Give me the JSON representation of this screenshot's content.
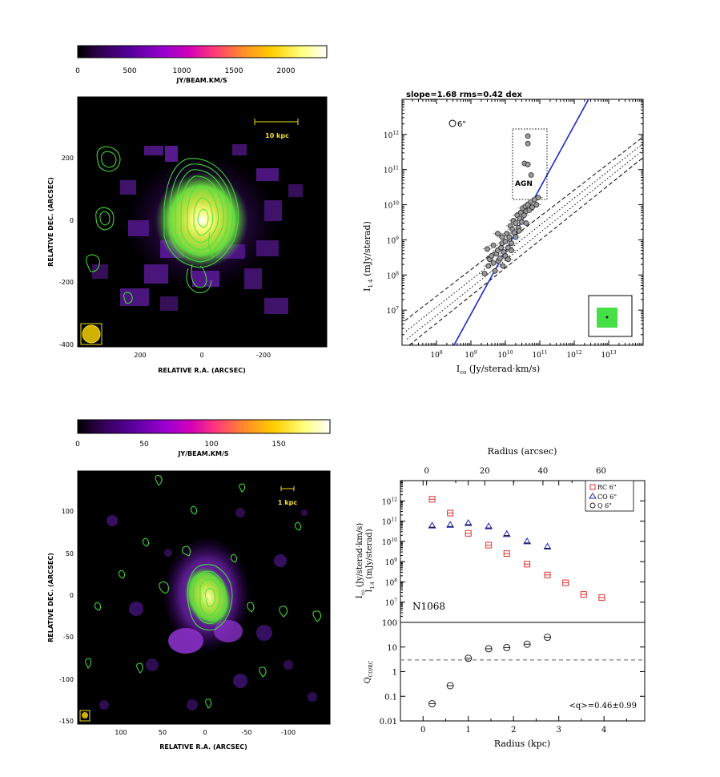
{
  "colors": {
    "colorbar_stops": [
      "#000000",
      "#2b0048",
      "#5a00a0",
      "#9a00d0",
      "#d500b8",
      "#ff3a7a",
      "#ff8a2a",
      "#ffd000",
      "#ffff80",
      "#ffffff"
    ],
    "contour": "#45e43a",
    "map_background": "#000000",
    "scale_bar": "#f0e020",
    "fit_line": "#1a28c8",
    "rc_marker": "#e03030",
    "co_marker": "#2020d0",
    "q_marker": "#222222"
  },
  "panel_tl": {
    "colorbar_ticks": [
      "0",
      "500",
      "1000",
      "1500",
      "2000"
    ],
    "colorbar_unit": "JY/BEAM.KM/S",
    "scale_label": "10 kpc",
    "y_ticks": [
      "200",
      "0",
      "-200",
      "-400"
    ],
    "x_ticks": [
      "200",
      "0",
      "-200"
    ],
    "ylabel": "RELATIVE DEC. (ARCSEC)",
    "xlabel": "RELATIVE R.A. (ARCSEC)"
  },
  "panel_bl": {
    "colorbar_ticks": [
      "0",
      "50",
      "100",
      "150"
    ],
    "colorbar_unit": "JY/BEAM.KM/S",
    "scale_label": "1 kpc",
    "y_ticks": [
      "100",
      "50",
      "0",
      "-50",
      "-100",
      "-150"
    ],
    "x_ticks": [
      "100",
      "50",
      "0",
      "-50",
      "-100"
    ],
    "ylabel": "RELATIVE DEC. (ARCSEC)",
    "xlabel": "RELATIVE R.A. (ARCSEC)"
  },
  "chart_data": [
    {
      "type": "scatter",
      "title": "slope=1.68 rms=0.42 dex",
      "xlabel_main": "I",
      "xlabel_sub": "co",
      "xlabel_rest": "(Jy/sterad·km/s)",
      "ylabel_main": "I",
      "ylabel_sub": "1.4",
      "ylabel_rest": "(mJy/sterad)",
      "x_scale": "log",
      "y_scale": "log",
      "xlim": [
        10000000.0,
        100000000000000.0
      ],
      "ylim": [
        1000000.0,
        10000000000000.0
      ],
      "x_tick_exponents": [
        8,
        9,
        10,
        11,
        12,
        13
      ],
      "y_tick_exponents": [
        7,
        8,
        9,
        10,
        11,
        12
      ],
      "beam_label": "6\"",
      "annotation": "AGN",
      "fit_slope": 1.68,
      "fit_line": [
        [
          320000000.0,
          1000000.0
        ],
        [
          2600000000000.0,
          10000000000000.0
        ]
      ],
      "dispersion_lines": [
        {
          "style": "dotted",
          "points": [
            [
              13000000.0,
              2500000.0
            ],
            [
              100000000000000.0,
              550000000000.0
            ]
          ]
        },
        {
          "style": "dotted",
          "points": [
            [
              14000000.0,
              1500000.0
            ],
            [
              100000000000000.0,
              360000000000.0
            ]
          ]
        },
        {
          "style": "dashed",
          "points": [
            [
              12000000.0,
              5000000.0
            ],
            [
              100000000000000.0,
              850000000000.0
            ]
          ]
        },
        {
          "style": "dashed",
          "points": [
            [
              16000000.0,
              1000000.0
            ],
            [
              100000000000000.0,
              220000000000.0
            ]
          ]
        }
      ],
      "agn_points": [
        [
          45000000000.0,
          900000000000.0
        ],
        [
          45000000000.0,
          550000000000.0
        ],
        [
          36000000000.0,
          150000000000.0
        ],
        [
          45000000000.0,
          140000000000.0
        ],
        [
          56000000000.0,
          70000000000.0
        ]
      ],
      "points": [
        [
          2500000000.0,
          110000000.0
        ],
        [
          3200000000.0,
          180000000.0
        ],
        [
          3500000000.0,
          280000000.0
        ],
        [
          4000000000.0,
          350000000.0
        ],
        [
          4500000000.0,
          220000000.0
        ],
        [
          5000000000.0,
          130000000.0
        ],
        [
          5500000000.0,
          400000000.0
        ],
        [
          6000000000.0,
          500000000.0
        ],
        [
          6300000000.0,
          250000000.0
        ],
        [
          7000000000.0,
          300000000.0
        ],
        [
          7500000000.0,
          600000000.0
        ],
        [
          8000000000.0,
          800000000.0
        ],
        [
          8500000000.0,
          180000000.0
        ],
        [
          9000000000.0,
          450000000.0
        ],
        [
          10000000000.0,
          900000000.0
        ],
        [
          11000000000.0,
          1500000000.0
        ],
        [
          12000000000.0,
          600000000.0
        ],
        [
          13000000000.0,
          1200000000.0
        ],
        [
          14000000000.0,
          2500000000.0
        ],
        [
          15000000000.0,
          800000000.0
        ],
        [
          16000000000.0,
          2000000000.0
        ],
        [
          17000000000.0,
          3500000000.0
        ],
        [
          18000000000.0,
          1600000000.0
        ],
        [
          20000000000.0,
          3000000000.0
        ],
        [
          22000000000.0,
          5000000000.0
        ],
        [
          24000000000.0,
          2200000000.0
        ],
        [
          26000000000.0,
          4000000000.0
        ],
        [
          28000000000.0,
          6000000000.0
        ],
        [
          30000000000.0,
          3200000000.0
        ],
        [
          32000000000.0,
          8000000000.0
        ],
        [
          35000000000.0,
          5000000000.0
        ],
        [
          38000000000.0,
          9000000000.0
        ],
        [
          40000000000.0,
          6500000000.0
        ],
        [
          45000000000.0,
          10000000000.0
        ],
        [
          50000000000.0,
          7000000000.0
        ],
        [
          55000000000.0,
          12000000000.0
        ],
        [
          60000000000.0,
          8500000000.0
        ],
        [
          70000000000.0,
          14000000000.0
        ],
        [
          80000000000.0,
          10000000000.0
        ],
        [
          90000000000.0,
          16000000000.0
        ],
        [
          10000000000.0,
          350000000.0
        ],
        [
          15000000000.0,
          500000000.0
        ],
        [
          20000000000.0,
          1200000000.0
        ],
        [
          6000000000.0,
          1500000000.0
        ],
        [
          8000000000.0,
          1200000000.0
        ],
        [
          3000000000.0,
          550000000.0
        ],
        [
          4500000000.0,
          700000000.0
        ],
        [
          12000000000.0,
          280000000.0
        ],
        [
          25000000000.0,
          1800000000.0
        ],
        [
          40000000000.0,
          3000000000.0
        ]
      ]
    },
    {
      "type": "scatter",
      "title": "N1068",
      "top_xlabel": "Radius (arcsec)",
      "top_x_ticks": [
        0,
        20,
        40,
        60
      ],
      "top_xlim": [
        -9,
        75
      ],
      "ylabel_line1_main": "I",
      "ylabel_line1_sub": "co",
      "ylabel_line1_rest": "(Jy/sterad·km/s)",
      "ylabel_line2_main": "I",
      "ylabel_line2_sub": "1.4",
      "ylabel_line2_rest": "(mJy/sterad)",
      "y_scale": "log",
      "ylim": [
        1000000.0,
        10000000000000.0
      ],
      "y_tick_exponents": [
        7,
        8,
        9,
        10,
        11,
        12
      ],
      "xlim": [
        -0.5,
        4.9
      ],
      "legend_position": "top-right",
      "series": [
        {
          "name": "RC 6\"",
          "marker": "square",
          "x": [
            0.2,
            0.6,
            1.0,
            1.45,
            1.85,
            2.3,
            2.75,
            3.15,
            3.55,
            3.95
          ],
          "values": [
            1200000000000.0,
            250000000000.0,
            25000000000.0,
            6500000000.0,
            2500000000.0,
            750000000.0,
            220000000.0,
            90000000.0,
            24000000.0,
            17000000.0
          ]
        },
        {
          "name": "CO 6\"",
          "marker": "triangle",
          "x": [
            0.2,
            0.6,
            1.0,
            1.45,
            1.85,
            2.3,
            2.75
          ],
          "values": [
            60000000000.0,
            65000000000.0,
            80000000000.0,
            55000000000.0,
            23000000000.0,
            10000000000.0,
            5500000000.0
          ]
        },
        {
          "name": "Q 6\"",
          "marker": "circle",
          "x": [],
          "values": []
        }
      ]
    },
    {
      "type": "scatter",
      "xlabel": "Radius (kpc)",
      "ylabel_main": "Q",
      "ylabel_sub": "CO/RC",
      "y_scale": "log",
      "ylim": [
        0.01,
        100
      ],
      "y_ticks": [
        "0.01",
        "0.1",
        "1",
        "10",
        "100"
      ],
      "xlim": [
        -0.5,
        4.9
      ],
      "x_ticks": [
        0,
        1,
        2,
        3,
        4
      ],
      "mean_line": 3,
      "annotation": "<q>=0.46±0.99",
      "series": [
        {
          "name": "Q",
          "x": [
            0.2,
            0.6,
            1.0,
            1.45,
            1.85,
            2.3,
            2.75
          ],
          "values": [
            0.05,
            0.27,
            3.5,
            8.5,
            9.5,
            13,
            25
          ]
        }
      ]
    }
  ]
}
